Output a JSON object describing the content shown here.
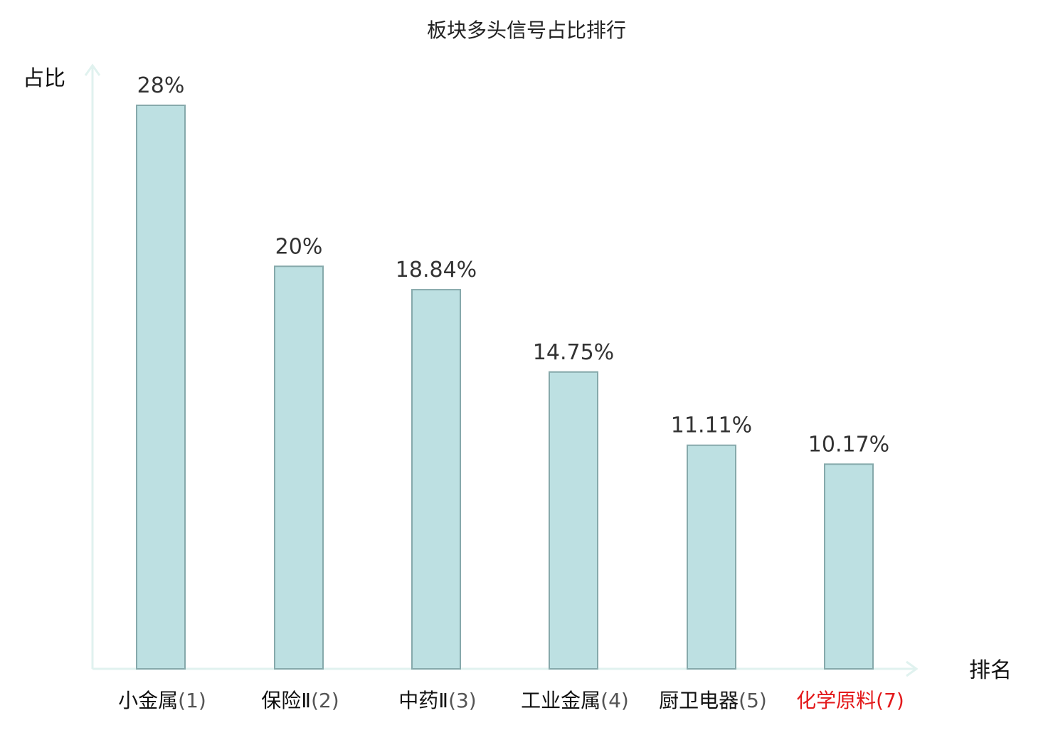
{
  "chart_data": {
    "type": "bar",
    "title": "板块多头信号占比排行",
    "ylabel": "占比",
    "xlabel": "排名",
    "grid": false,
    "ylim": [
      0,
      30
    ],
    "categories": [
      {
        "name": "小金属",
        "rank": "(1)",
        "highlight": false
      },
      {
        "name": "保险Ⅱ",
        "rank": "(2)",
        "highlight": false
      },
      {
        "name": "中药Ⅱ",
        "rank": "(3)",
        "highlight": false
      },
      {
        "name": "工业金属",
        "rank": "(4)",
        "highlight": false
      },
      {
        "name": "厨卫电器",
        "rank": "(5)",
        "highlight": false
      },
      {
        "name": "化学原料",
        "rank": "(7)",
        "highlight": true
      }
    ],
    "values": [
      28,
      20,
      18.84,
      14.75,
      11.11,
      10.17
    ],
    "value_labels": [
      "28%",
      "20%",
      "18.84%",
      "14.75%",
      "11.11%",
      "10.17%"
    ]
  },
  "colors": {
    "bar_fill": "#bde0e2",
    "bar_stroke": "#86a9ab",
    "axis": "#e0f2ef",
    "value_text": "#333333",
    "category_text": "#111111",
    "rank_text": "#555555",
    "highlight_text": "#e31a1c"
  }
}
